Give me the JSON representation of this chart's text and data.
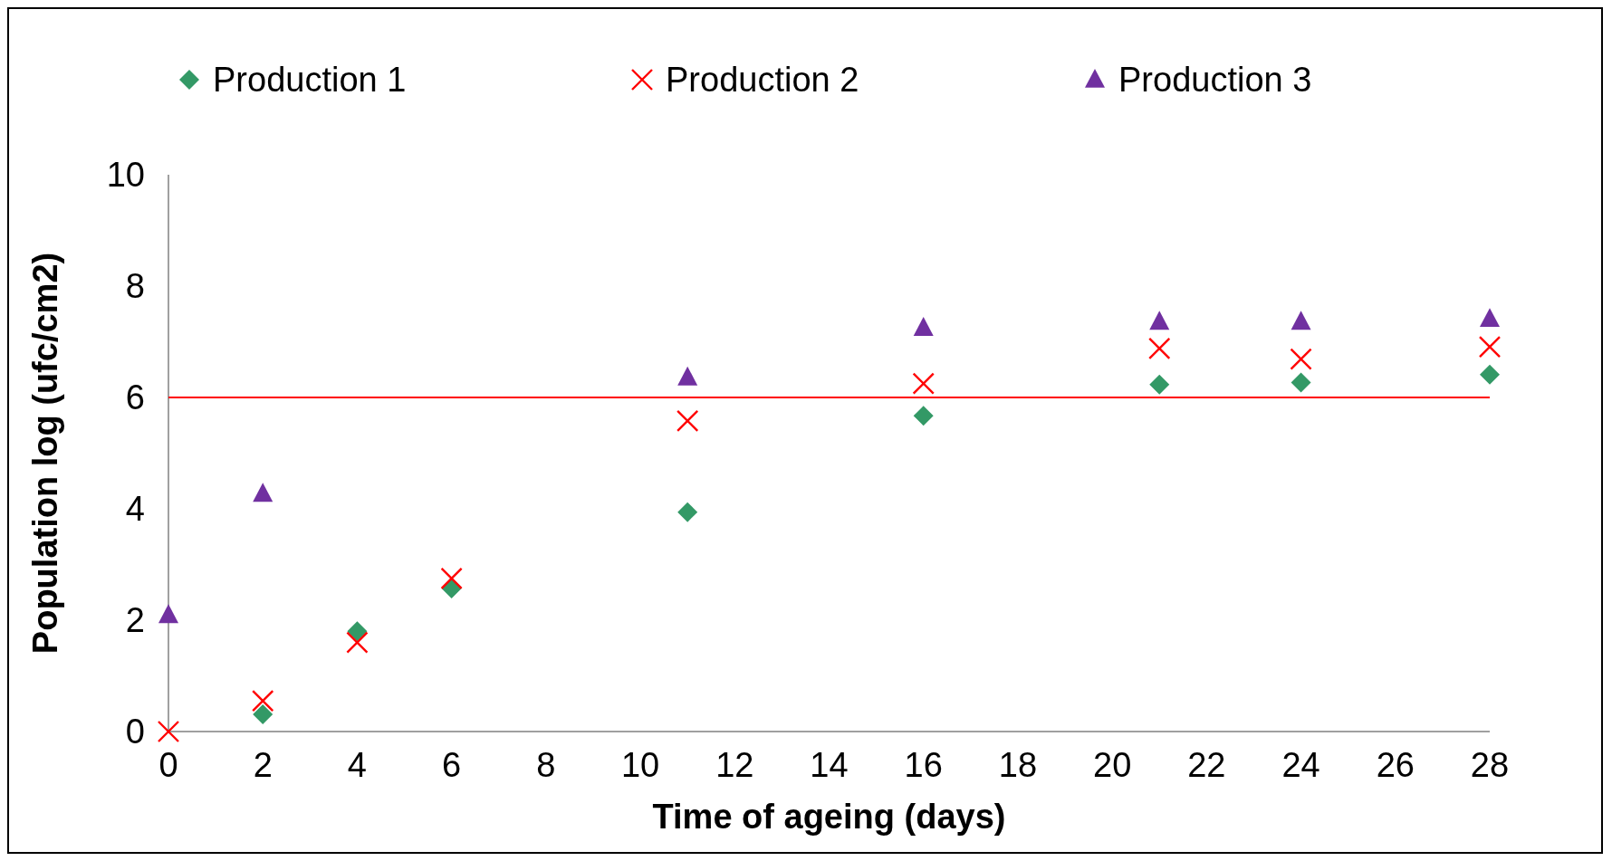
{
  "chart_data": {
    "type": "scatter",
    "xlabel": "Time of ageing (days)",
    "ylabel": "Population log (ufc/cm2)",
    "x": [
      0,
      2,
      4,
      6,
      11,
      16,
      21,
      24,
      28
    ],
    "series": [
      {
        "name": "Production 1",
        "color": "#339966",
        "marker": "diamond",
        "values": [
          null,
          0.31,
          1.8,
          2.57,
          3.94,
          5.67,
          6.23,
          6.27,
          6.41
        ]
      },
      {
        "name": "Production 2",
        "color": "#ff0000",
        "marker": "cross",
        "values": [
          0,
          0.55,
          1.6,
          2.75,
          5.58,
          6.25,
          6.88,
          6.69,
          6.91
        ]
      },
      {
        "name": "Production 3",
        "color": "#7030a0",
        "marker": "triangle",
        "x": [
          0,
          2,
          11,
          16,
          21,
          24,
          28
        ],
        "values": [
          2.09,
          4.27,
          6.36,
          7.25,
          7.36,
          7.36,
          7.41
        ]
      }
    ],
    "xlim": [
      0,
      28
    ],
    "xticks": [
      0,
      2,
      4,
      6,
      8,
      10,
      12,
      14,
      16,
      18,
      20,
      22,
      24,
      26,
      28
    ],
    "ylim": [
      0,
      10
    ],
    "yticks": [
      0,
      2,
      4,
      6,
      8,
      10
    ],
    "ref_lines": [
      {
        "axis": "y",
        "value": 6,
        "color": "#ff0000"
      }
    ],
    "legend": "top",
    "grid": false
  }
}
